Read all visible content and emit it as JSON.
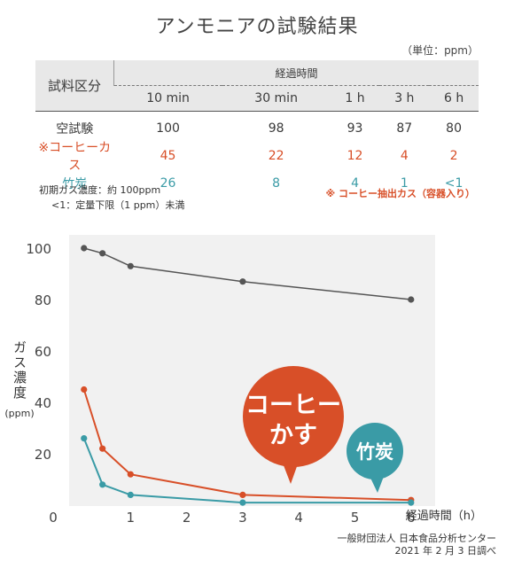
{
  "title": "アンモニアの試験結果",
  "unit_note": "（単位：ppm）",
  "table": {
    "row_header": "試料区分",
    "time_header": "経過時間",
    "times": [
      "10 min",
      "30 min",
      "1 h",
      "3 h",
      "6 h"
    ],
    "rows": [
      {
        "label": "空試験",
        "values": [
          "100",
          "98",
          "93",
          "87",
          "80"
        ]
      },
      {
        "label": "※コーヒーカス",
        "values": [
          "45",
          "22",
          "12",
          "4",
          "2"
        ]
      },
      {
        "label": "竹炭",
        "values": [
          "26",
          "8",
          "4",
          "1",
          "<1"
        ]
      }
    ]
  },
  "notes": {
    "initial": "初期ガス濃度：約 100ppm",
    "limit": "<1：定量下限（1 ppm）未満",
    "coffee": "※ コーヒー抽出カス（容器入り）"
  },
  "source": {
    "org": "一般財団法人 日本食品分析センター",
    "date": "2021 年 2 月 3 日調べ"
  },
  "colors": {
    "blank": "#555555",
    "coffee": "#d84f28",
    "tan": "#3a9ba6",
    "plot_bg": "#f1f1f1"
  },
  "chart_data": {
    "type": "line",
    "xlabel": "経過時間（h）",
    "ylabel": "ガス濃度",
    "ylabel_unit": "(ppm)",
    "xlim": [
      0,
      6.3
    ],
    "ylim": [
      0,
      105
    ],
    "xticks": [
      "0",
      "1",
      "2",
      "3",
      "4",
      "5",
      "6"
    ],
    "yticks": [
      "20",
      "40",
      "60",
      "80",
      "100"
    ],
    "grid": false,
    "series": [
      {
        "name": "空試験",
        "color": "#555555",
        "x": [
          0.17,
          0.5,
          1,
          3,
          6
        ],
        "y": [
          100,
          98,
          93,
          87,
          80
        ]
      },
      {
        "name": "コーヒーかす",
        "color": "#d84f28",
        "x": [
          0.17,
          0.5,
          1,
          3,
          6
        ],
        "y": [
          45,
          22,
          12,
          4,
          2
        ]
      },
      {
        "name": "竹炭",
        "color": "#3a9ba6",
        "x": [
          0.17,
          0.5,
          1,
          3,
          6
        ],
        "y": [
          26,
          8,
          4,
          1,
          1
        ]
      }
    ],
    "callouts": [
      {
        "text_line1": "コーヒー",
        "text_line2": "かす",
        "color": "#d84f28"
      },
      {
        "text": "竹炭",
        "color": "#3a9ba6"
      }
    ]
  }
}
